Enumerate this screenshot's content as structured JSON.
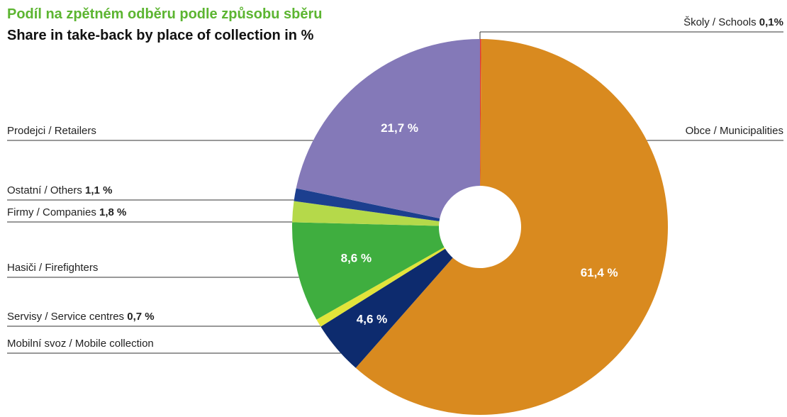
{
  "chart_data": {
    "type": "donut",
    "title": "Podíl na zpětném odběru podle způsobu sběru",
    "subtitle": "Share in take-back by place of collection in %",
    "categories": [
      "Školy / Schools",
      "Obce / Municipalities",
      "Mobilní svoz / Mobile collection",
      "Servisy / Service centres",
      "Hasiči / Firefighters",
      "Firmy / Companies",
      "Ostatní / Others",
      "Prodejci / Retailers"
    ],
    "values": [
      0.1,
      61.4,
      4.6,
      0.7,
      8.6,
      1.8,
      1.1,
      21.7
    ],
    "value_labels": [
      "0,1%",
      "61,4 %",
      "4,6 %",
      "0,7 %",
      "8,6 %",
      "1,8 %",
      "1,1 %",
      "21,7 %"
    ],
    "colors": [
      "#e63a2e",
      "#d98a1f",
      "#0d2b6e",
      "#e2e43a",
      "#3fae3f",
      "#b5d94a",
      "#1c3f8f",
      "#8479b8"
    ]
  }
}
